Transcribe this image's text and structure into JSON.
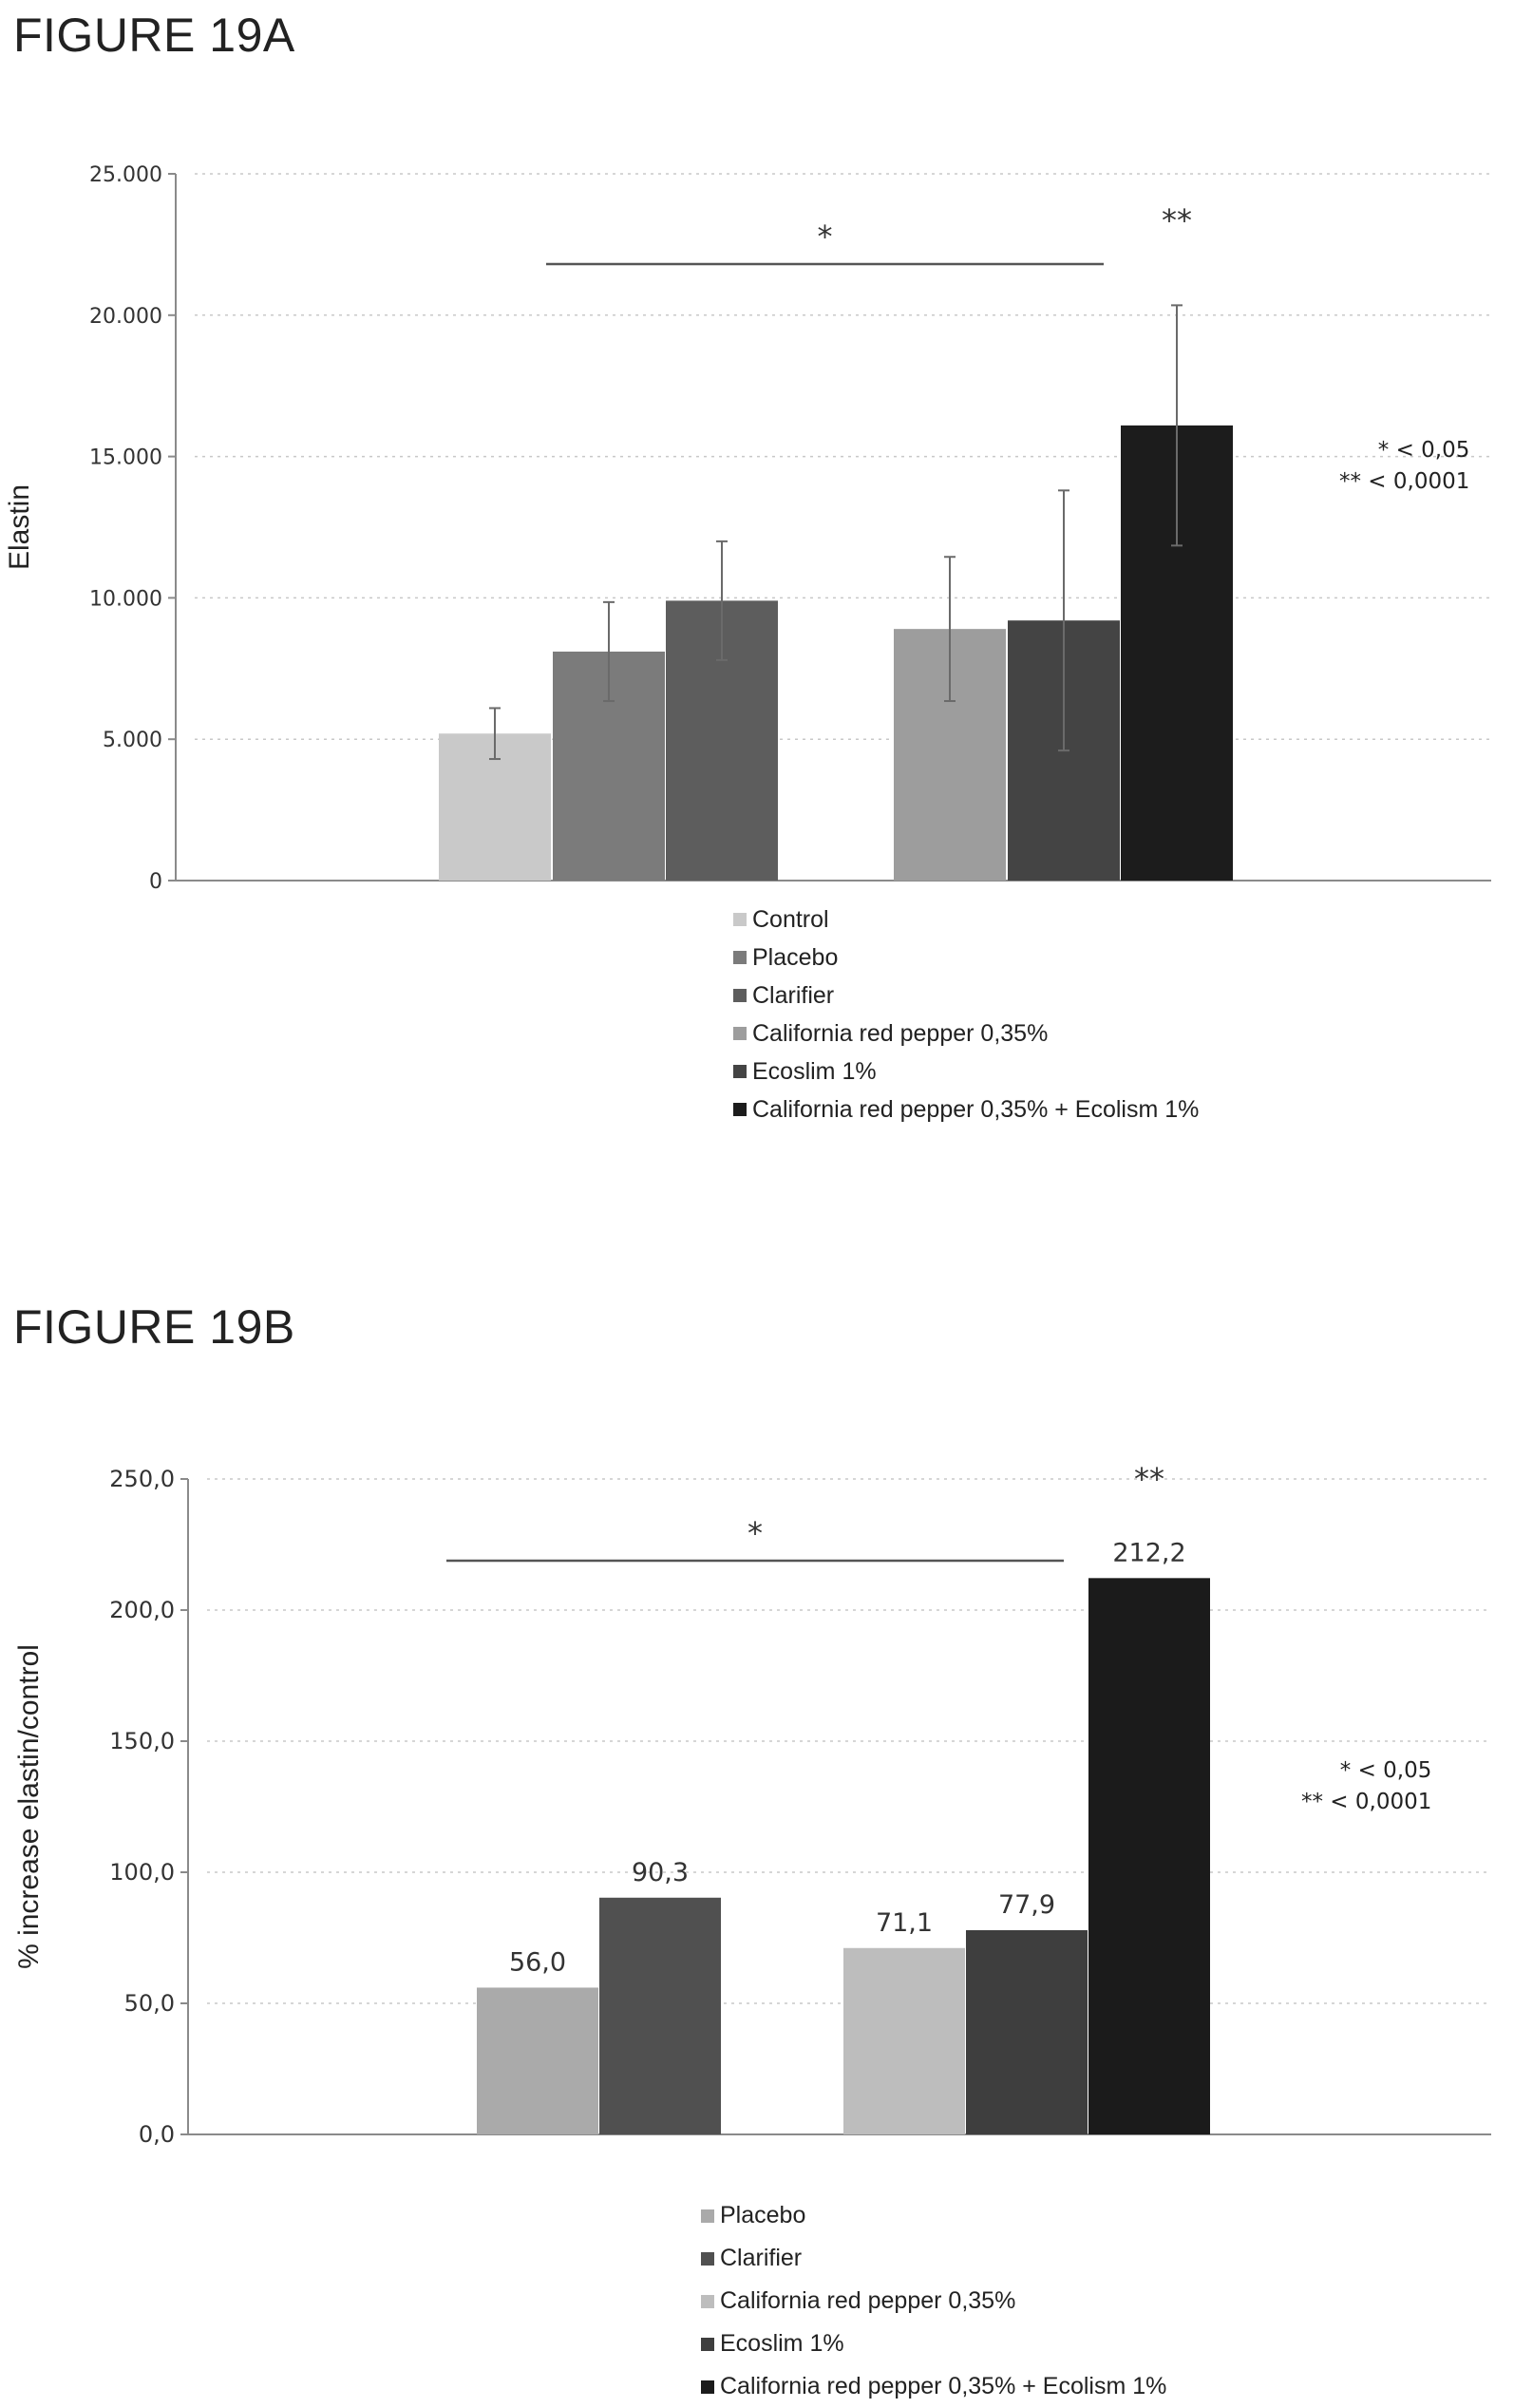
{
  "figures": {
    "a": {
      "title": "FIGURE 19A"
    },
    "b": {
      "title": "FIGURE 19B"
    }
  },
  "chart_data": [
    {
      "type": "bar",
      "ylabel": "Elastin",
      "ylim": [
        0,
        25000
      ],
      "yticks": [
        0,
        5000,
        10000,
        15000,
        20000,
        25000
      ],
      "ytick_labels": [
        "0",
        "5.000",
        "10.000",
        "15.000",
        "20.000",
        "25.000"
      ],
      "grid": true,
      "error_bars": true,
      "groups": [
        [
          "Control",
          "Placebo",
          "Clarifier"
        ],
        [
          "California red pepper 0,35%",
          "Ecoslim 1%",
          "California red pepper 0,35% + Ecolism 1%"
        ]
      ],
      "series": [
        {
          "name": "Control",
          "value": 5200,
          "error": 900,
          "color": "#c9c9c9"
        },
        {
          "name": "Placebo",
          "value": 8100,
          "error": 1750,
          "color": "#7b7b7b"
        },
        {
          "name": "Clarifier",
          "value": 9900,
          "error": 2100,
          "color": "#5d5d5d"
        },
        {
          "name": "California red pepper 0,35%",
          "value": 8900,
          "error": 2550,
          "color": "#9d9d9d"
        },
        {
          "name": "Ecoslim 1%",
          "value": 9200,
          "error": 4600,
          "color": "#444444"
        },
        {
          "name": "California red pepper 0,35% + Ecolism 1%",
          "value": 16100,
          "error": 4250,
          "color": "#1c1c1c"
        }
      ],
      "significance": {
        "bracket_label": "*",
        "top_label": "**",
        "notes": [
          "* < 0,05",
          "** < 0,0001"
        ]
      }
    },
    {
      "type": "bar",
      "ylabel": "% increase elastin/control",
      "ylim": [
        0,
        250
      ],
      "yticks": [
        0,
        50,
        100,
        150,
        200,
        250
      ],
      "ytick_labels": [
        "0,0",
        "50,0",
        "100,0",
        "150,0",
        "200,0",
        "250,0"
      ],
      "grid": true,
      "groups": [
        [
          "Placebo",
          "Clarifier"
        ],
        [
          "California red pepper 0,35%",
          "Ecoslim 1%",
          "California red pepper 0,35% + Ecolism 1%"
        ]
      ],
      "series": [
        {
          "name": "Placebo",
          "value": 56.0,
          "label": "56,0",
          "color": "#aaaaaa"
        },
        {
          "name": "Clarifier",
          "value": 90.3,
          "label": "90,3",
          "color": "#505050"
        },
        {
          "name": "California red pepper 0,35%",
          "value": 71.1,
          "label": "71,1",
          "color": "#bdbdbd"
        },
        {
          "name": "Ecoslim 1%",
          "value": 77.9,
          "label": "77,9",
          "color": "#3e3e3e"
        },
        {
          "name": "California red pepper 0,35% + Ecolism 1%",
          "value": 212.2,
          "label": "212,2",
          "color": "#1b1b1b"
        }
      ],
      "significance": {
        "bracket_label": "*",
        "top_label": "**",
        "notes": [
          "* < 0,05",
          "** < 0,0001"
        ]
      }
    }
  ]
}
